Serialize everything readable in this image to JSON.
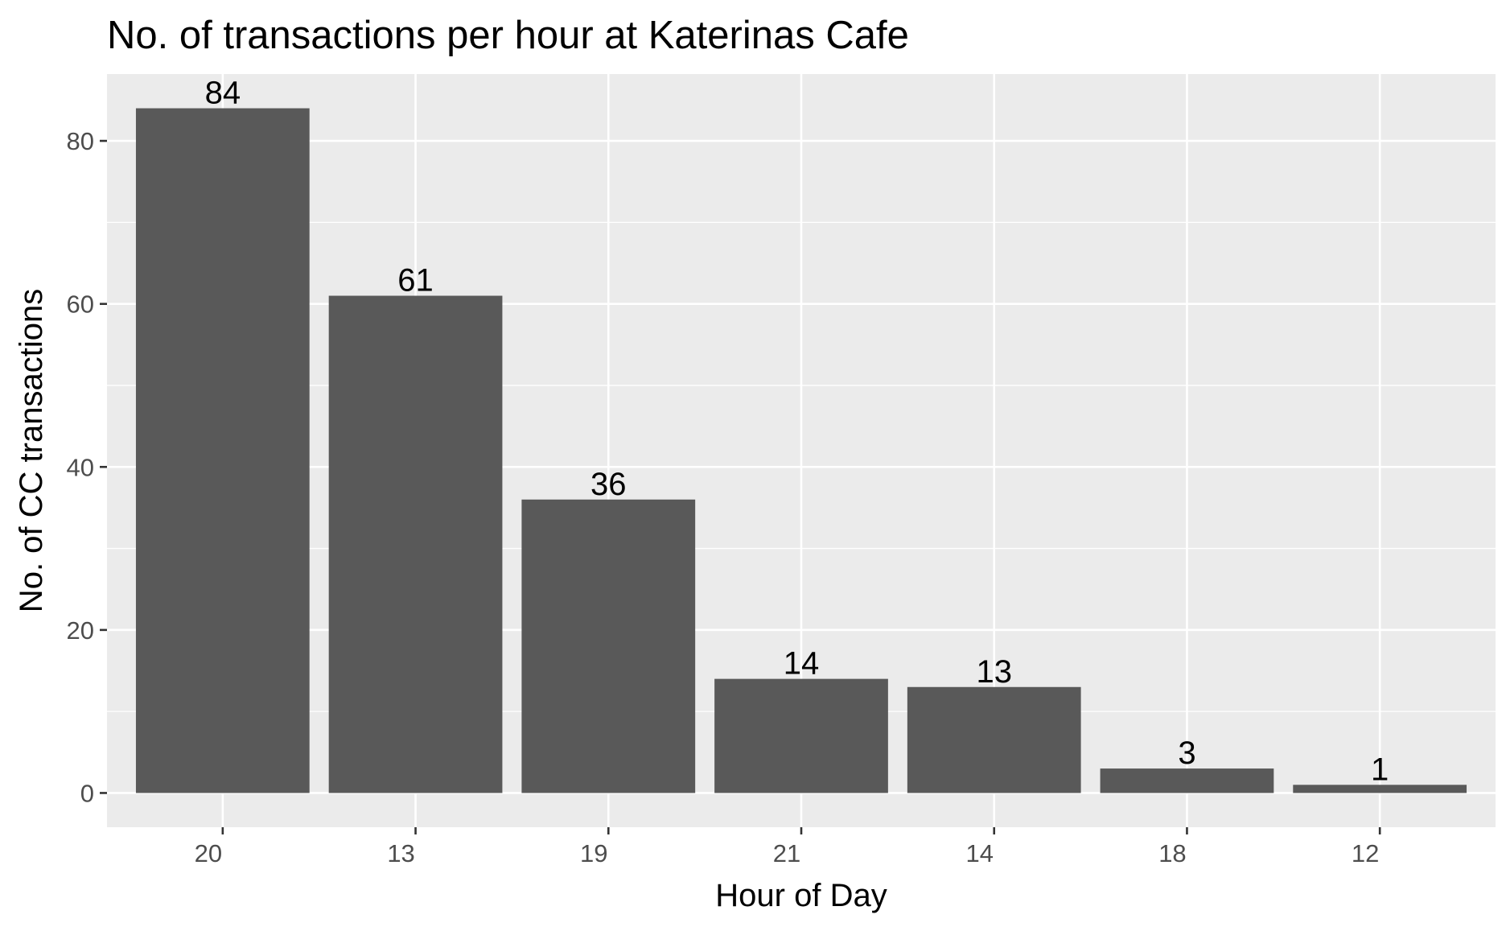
{
  "chart_data": {
    "type": "bar",
    "title": "No. of transactions per hour at Katerinas Cafe",
    "xlabel": "Hour of Day",
    "ylabel": "No. of CC transactions",
    "categories": [
      "20",
      "13",
      "19",
      "21",
      "14",
      "18",
      "12"
    ],
    "values": [
      84,
      61,
      36,
      14,
      13,
      3,
      1
    ],
    "data_labels": [
      "84",
      "61",
      "36",
      "14",
      "13",
      "3",
      "1"
    ],
    "y_ticks": [
      0,
      20,
      40,
      60,
      80
    ],
    "y_tick_labels": [
      "0",
      "20",
      "40",
      "60",
      "80"
    ],
    "ylim": [
      -4.2,
      88.2
    ],
    "grid": true,
    "legend": "none",
    "colors": {
      "panel_background": "#ebebeb",
      "grid_line": "#ffffff",
      "bar_fill": "#595959",
      "tick_mark": "#333333"
    }
  }
}
